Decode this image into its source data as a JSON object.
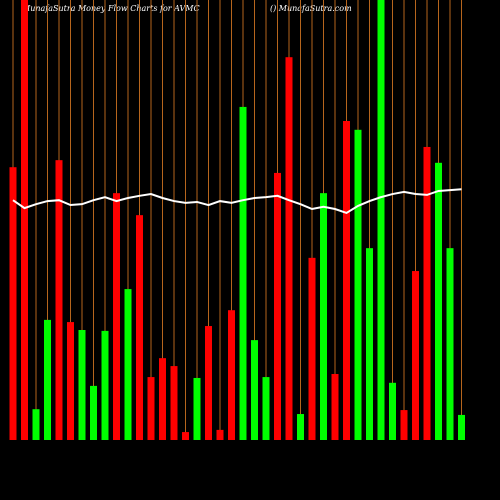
{
  "chart_data": {
    "type": "bar",
    "title": "MunafaSutra  Money  Flow  Charts for AVMC",
    "subtitle": "() MunafaSutra.com",
    "categories": [
      null,
      null,
      null,
      null,
      null,
      null,
      null,
      null,
      null,
      null,
      null,
      null,
      null,
      null,
      null,
      null,
      null,
      null,
      null,
      null,
      null,
      null,
      null,
      null,
      null,
      null,
      null,
      null,
      null,
      null,
      null,
      null,
      null,
      null,
      null,
      null,
      null,
      null,
      null,
      null
    ],
    "ylim": [
      0,
      100
    ],
    "grid": true,
    "grid_color": "#b5651d",
    "series": [
      {
        "type": "bar",
        "values": [
          62.0,
          100,
          7.0,
          27.3,
          63.6,
          26.8,
          25.0,
          12.3,
          24.8,
          56.1,
          34.3,
          51.1,
          14.3,
          18.6,
          16.8,
          1.8,
          14.1,
          25.9,
          2.3,
          29.5,
          75.7,
          22.7,
          14.3,
          60.7,
          87.0,
          5.9,
          41.4,
          56.1,
          15.0,
          72.5,
          70.5,
          43.6,
          100,
          13.0,
          6.8,
          38.4,
          66.6,
          63.0,
          43.6,
          5.7
        ],
        "colors": [
          "#ff0000",
          "#ff0000",
          "#00ff00",
          "#00ff00",
          "#ff0000",
          "#ff0000",
          "#00ff00",
          "#00ff00",
          "#00ff00",
          "#ff0000",
          "#00ff00",
          "#ff0000",
          "#ff0000",
          "#ff0000",
          "#ff0000",
          "#ff0000",
          "#00ff00",
          "#ff0000",
          "#ff0000",
          "#ff0000",
          "#00ff00",
          "#00ff00",
          "#00ff00",
          "#ff0000",
          "#ff0000",
          "#00ff00",
          "#ff0000",
          "#00ff00",
          "#ff0000",
          "#ff0000",
          "#00ff00",
          "#00ff00",
          "#00ff00",
          "#00ff00",
          "#ff0000",
          "#ff0000",
          "#ff0000",
          "#00ff00",
          "#00ff00",
          "#00ff00"
        ]
      },
      {
        "type": "line",
        "color": "#ffffff",
        "values": [
          54.5,
          52.7,
          53.6,
          54.3,
          54.5,
          53.4,
          53.6,
          54.5,
          55.2,
          54.3,
          55.0,
          55.5,
          55.9,
          55.0,
          54.3,
          53.9,
          54.1,
          53.4,
          54.3,
          53.9,
          54.5,
          55.0,
          55.2,
          55.5,
          54.5,
          53.6,
          52.5,
          53.0,
          52.5,
          51.6,
          53.2,
          54.3,
          55.2,
          55.9,
          56.4,
          55.9,
          55.7,
          56.6,
          56.8,
          57.0
        ]
      }
    ]
  }
}
